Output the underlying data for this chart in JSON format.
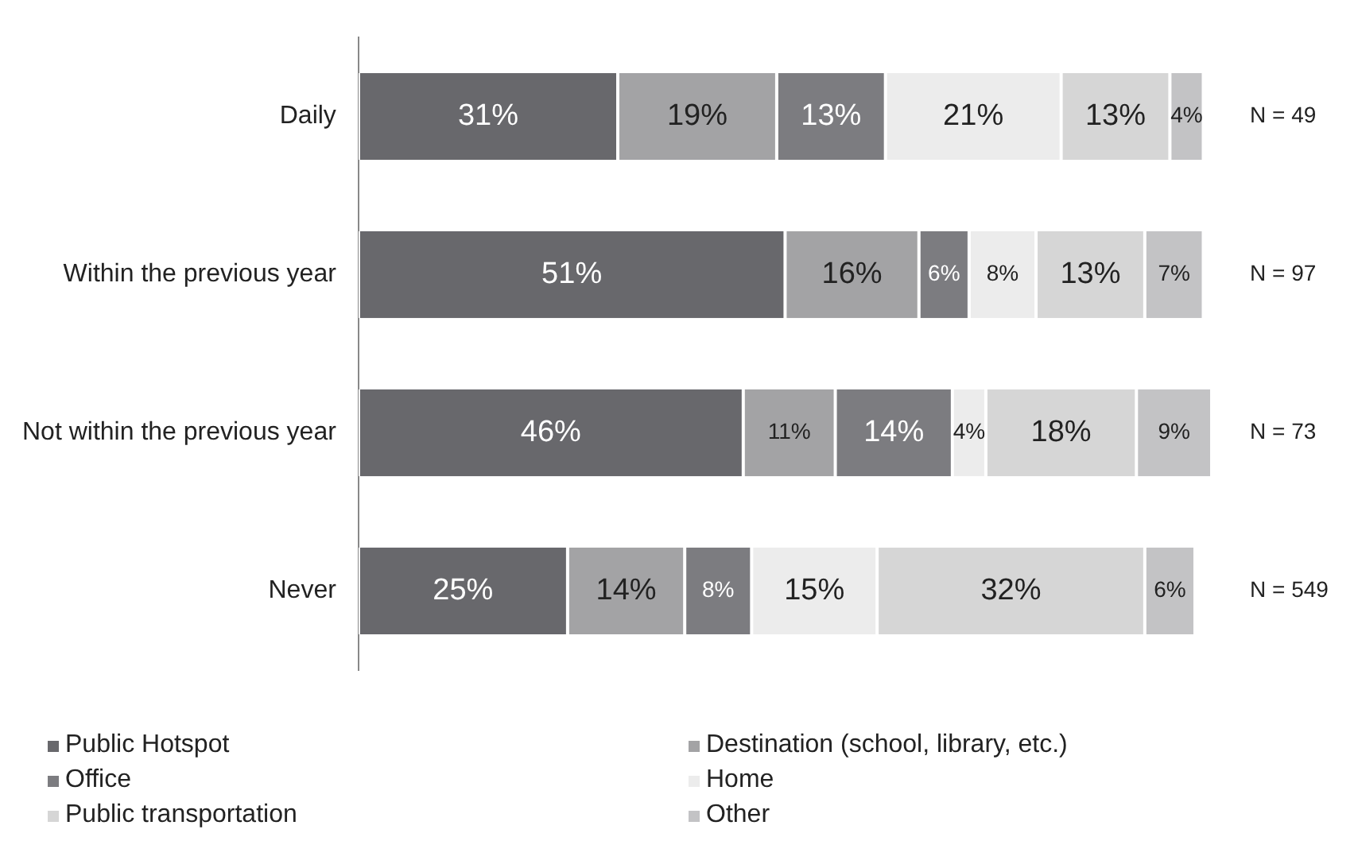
{
  "chart_data": {
    "type": "bar",
    "orientation": "horizontal",
    "stacked": true,
    "grid": false,
    "legend": "bottom",
    "categories": [
      "Daily",
      "Within the previous year",
      "Not within the previous year",
      "Never"
    ],
    "series": [
      {
        "name": "Public Hotspot",
        "color": "#68686c",
        "values": [
          31,
          51,
          46,
          25
        ],
        "value_labels": [
          "31%",
          "51%",
          "46%",
          "25%"
        ]
      },
      {
        "name": "Destination (school, library, etc.)",
        "color": "#a3a3a5",
        "values": [
          19,
          16,
          11,
          14
        ],
        "value_labels": [
          "19%",
          "16%",
          "11%",
          "14%"
        ]
      },
      {
        "name": "Office",
        "color": "#7c7c80",
        "values": [
          13,
          6,
          14,
          8
        ],
        "value_labels": [
          "13%",
          "6%",
          "14%",
          "8%"
        ]
      },
      {
        "name": "Home",
        "color": "#ececec",
        "values": [
          21,
          8,
          4,
          15
        ],
        "value_labels": [
          "21%",
          "8%",
          "4%",
          "15%"
        ]
      },
      {
        "name": "Public transportation",
        "color": "#d6d6d6",
        "values": [
          13,
          13,
          18,
          32
        ],
        "value_labels": [
          "13%",
          "13%",
          "18%",
          "32%"
        ]
      },
      {
        "name": "Other",
        "color": "#c3c3c5",
        "values": [
          4,
          7,
          9,
          6
        ],
        "value_labels": [
          "4%",
          "7%",
          "9%",
          "6%"
        ]
      }
    ],
    "annotations": [
      "N = 49",
      "N = 97",
      "N = 73",
      "N = 549"
    ]
  }
}
